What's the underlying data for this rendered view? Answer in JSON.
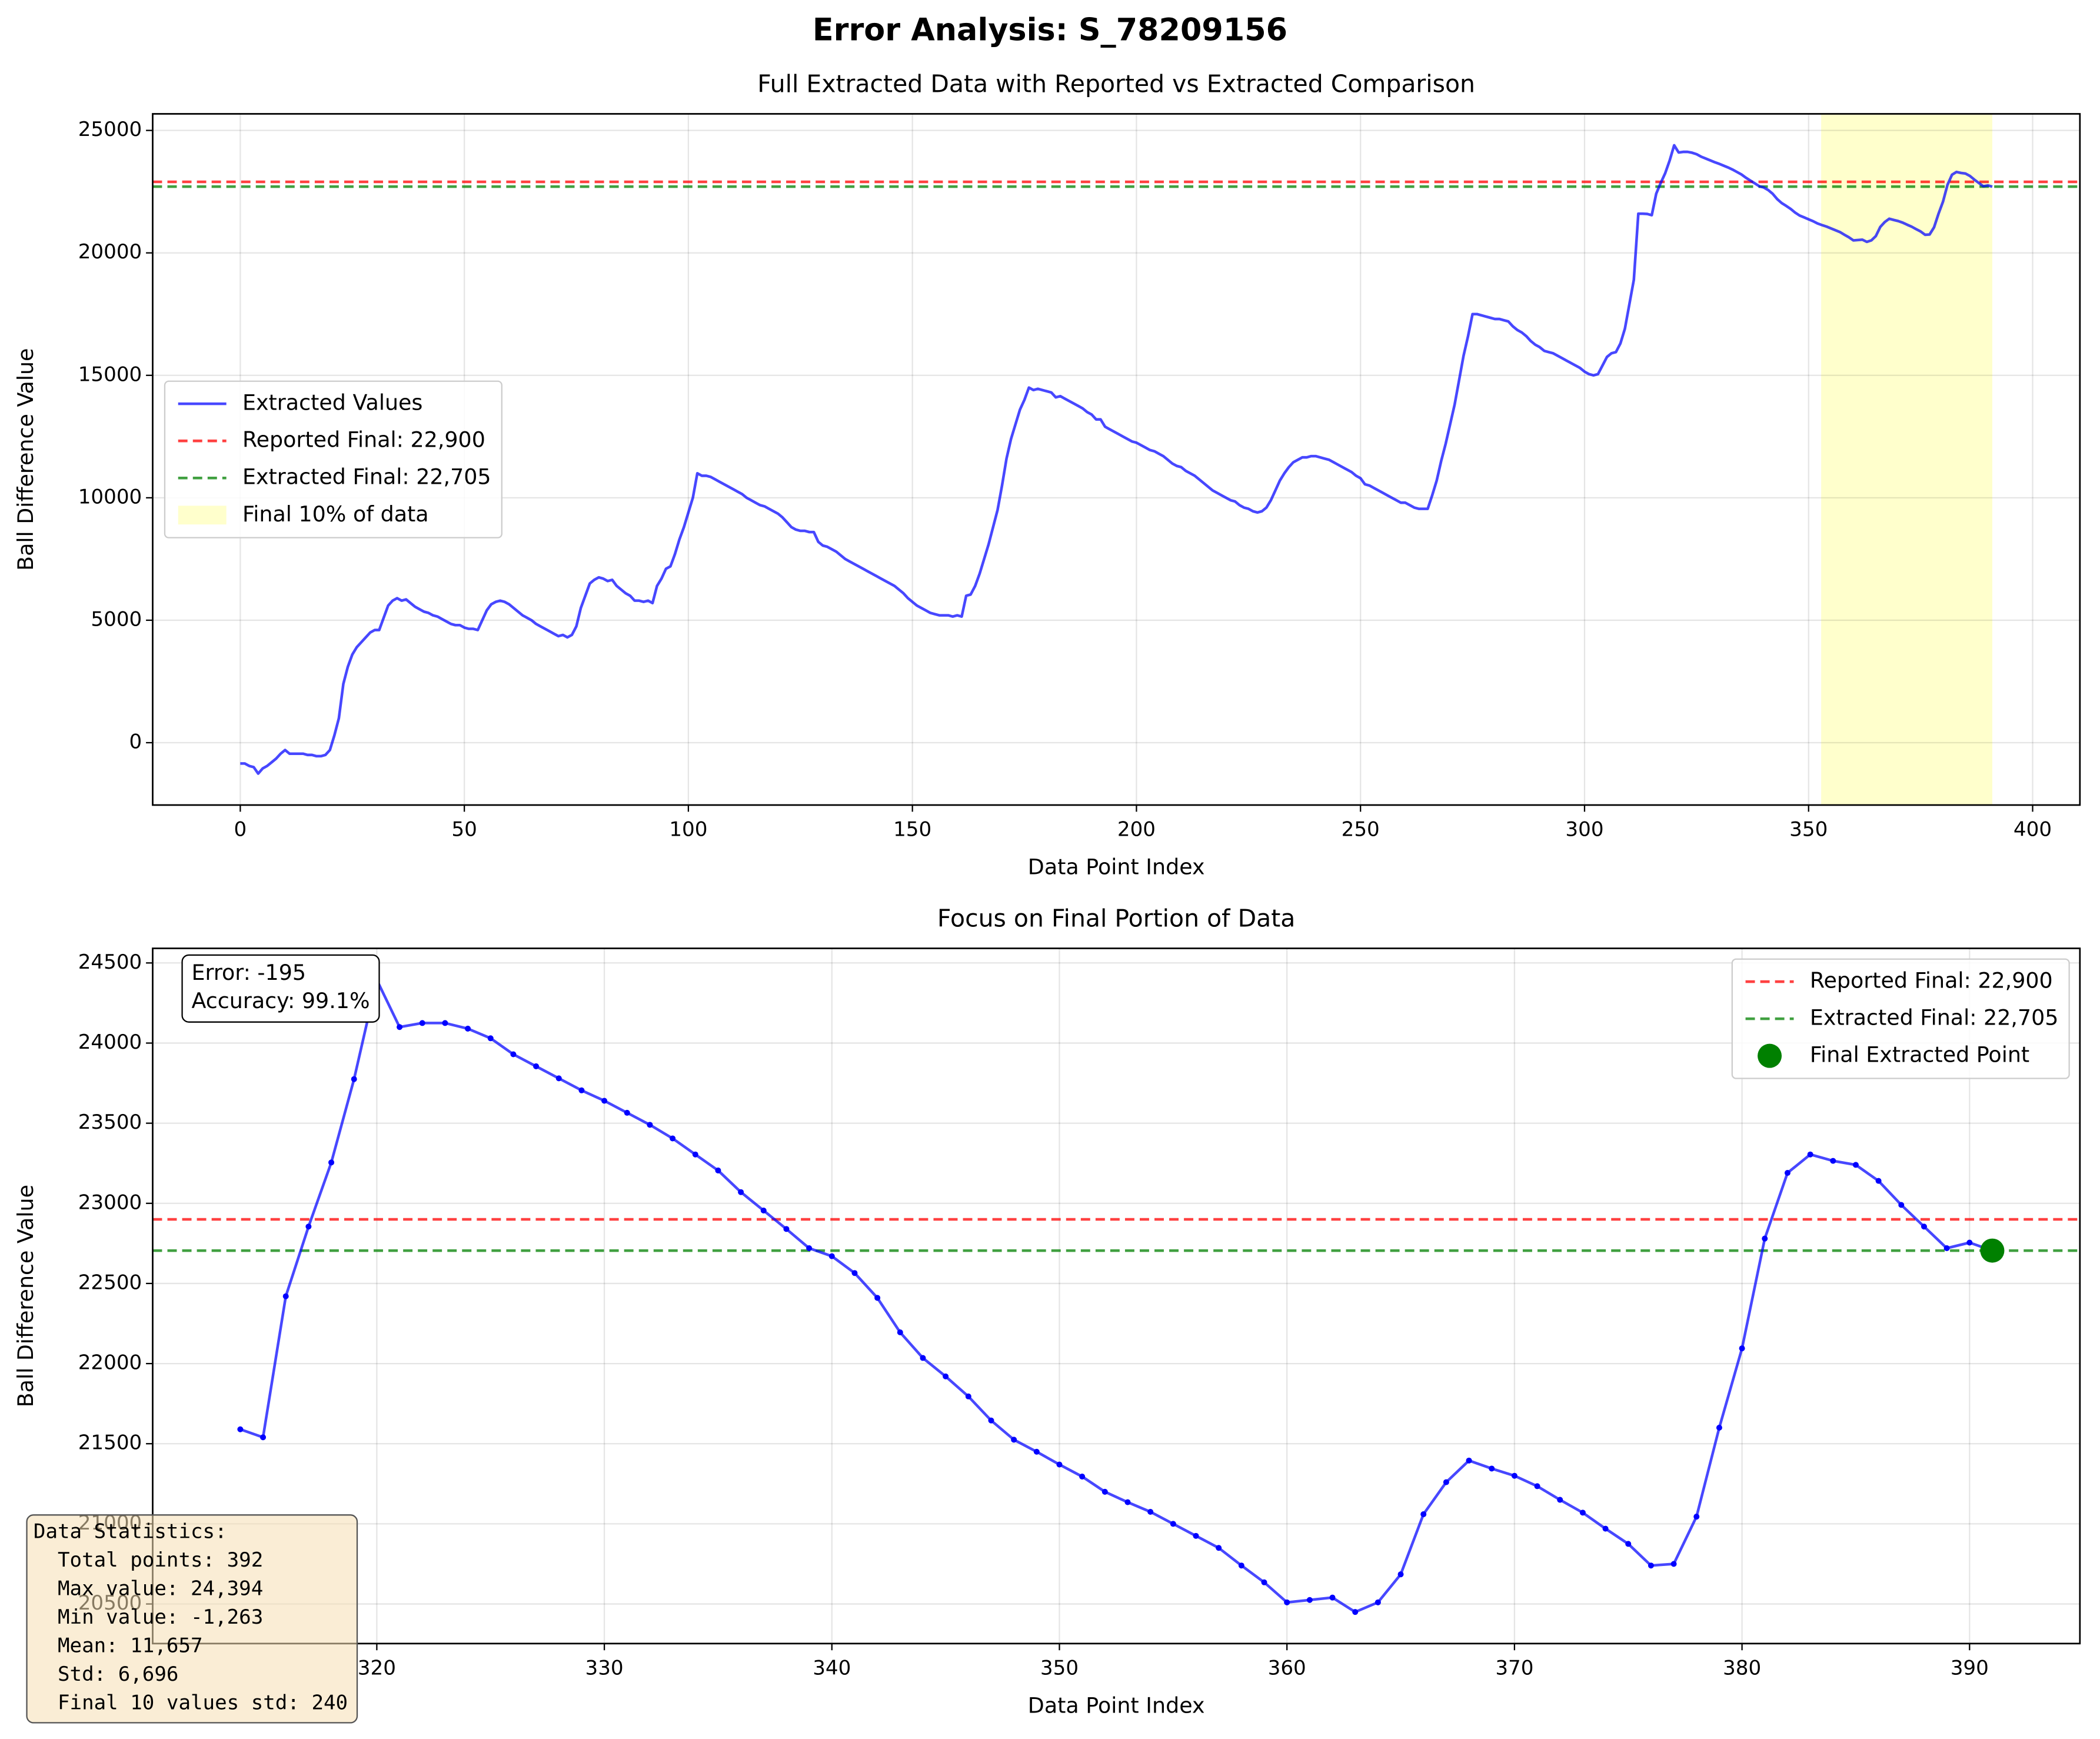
{
  "title": "Error Analysis: S_78209156",
  "stats_box": {
    "lines": [
      "Data Statistics:",
      "  Total points: 392",
      "  Max value: 24,394",
      "  Min value: -1,263",
      "  Mean: 11,657",
      "  Std: 6,696",
      "  Final 10 values std: 240"
    ]
  },
  "chart_data": [
    {
      "type": "line",
      "title": "Full Extracted Data with Reported vs Extracted Comparison",
      "xlabel": "Data Point Index",
      "ylabel": "Ball Difference Value",
      "xlim": [
        -19.55,
        410.55
      ],
      "ylim": [
        -2546,
        25677
      ],
      "xticks": [
        0,
        50,
        100,
        150,
        200,
        250,
        300,
        350,
        400
      ],
      "yticks": [
        0,
        5000,
        10000,
        15000,
        20000,
        25000
      ],
      "grid": true,
      "legend": "center left",
      "x": [
        0,
        1,
        2,
        3,
        4,
        5,
        6,
        7,
        8,
        9,
        10,
        11,
        12,
        13,
        14,
        15,
        16,
        17,
        18,
        19,
        20,
        21,
        22,
        23,
        24,
        25,
        26,
        27,
        28,
        29,
        30,
        31,
        32,
        33,
        34,
        35,
        36,
        37,
        38,
        39,
        40,
        41,
        42,
        43,
        44,
        45,
        46,
        47,
        48,
        49,
        50,
        51,
        52,
        53,
        54,
        55,
        56,
        57,
        58,
        59,
        60,
        61,
        62,
        63,
        64,
        65,
        66,
        67,
        68,
        69,
        70,
        71,
        72,
        73,
        74,
        75,
        76,
        77,
        78,
        79,
        80,
        81,
        82,
        83,
        84,
        85,
        86,
        87,
        88,
        89,
        90,
        91,
        92,
        93,
        94,
        95,
        96,
        97,
        98,
        99,
        100,
        101,
        102,
        103,
        104,
        105,
        106,
        107,
        108,
        109,
        110,
        111,
        112,
        113,
        114,
        115,
        116,
        117,
        118,
        119,
        120,
        121,
        122,
        123,
        124,
        125,
        126,
        127,
        128,
        129,
        130,
        131,
        132,
        133,
        134,
        135,
        136,
        137,
        138,
        139,
        140,
        141,
        142,
        143,
        144,
        145,
        146,
        147,
        148,
        149,
        150,
        151,
        152,
        153,
        154,
        155,
        156,
        157,
        158,
        159,
        160,
        161,
        162,
        163,
        164,
        165,
        166,
        167,
        168,
        169,
        170,
        171,
        172,
        173,
        174,
        175,
        176,
        177,
        178,
        179,
        180,
        181,
        182,
        183,
        184,
        185,
        186,
        187,
        188,
        189,
        190,
        191,
        192,
        193,
        194,
        195,
        196,
        197,
        198,
        199,
        200,
        201,
        202,
        203,
        204,
        205,
        206,
        207,
        208,
        209,
        210,
        211,
        212,
        213,
        214,
        215,
        216,
        217,
        218,
        219,
        220,
        221,
        222,
        223,
        224,
        225,
        226,
        227,
        228,
        229,
        230,
        231,
        232,
        233,
        234,
        235,
        236,
        237,
        238,
        239,
        240,
        241,
        242,
        243,
        244,
        245,
        246,
        247,
        248,
        249,
        250,
        251,
        252,
        253,
        254,
        255,
        256,
        257,
        258,
        259,
        260,
        261,
        262,
        263,
        264,
        265,
        266,
        267,
        268,
        269,
        270,
        271,
        272,
        273,
        274,
        275,
        276,
        277,
        278,
        279,
        280,
        281,
        282,
        283,
        284,
        285,
        286,
        287,
        288,
        289,
        290,
        291,
        292,
        293,
        294,
        295,
        296,
        297,
        298,
        299,
        300,
        301,
        302,
        303,
        304,
        305,
        306,
        307,
        308,
        309,
        310,
        311,
        312,
        313,
        314,
        315,
        316,
        317,
        318,
        319,
        320,
        321,
        322,
        323,
        324,
        325,
        326,
        327,
        328,
        329,
        330,
        331,
        332,
        333,
        334,
        335,
        336,
        337,
        338,
        339,
        340,
        341,
        342,
        343,
        344,
        345,
        346,
        347,
        348,
        349,
        350,
        351,
        352,
        353,
        354,
        355,
        356,
        357,
        358,
        359,
        360,
        361,
        362,
        363,
        364,
        365,
        366,
        367,
        368,
        369,
        370,
        371,
        372,
        373,
        374,
        375,
        376,
        377,
        378,
        379,
        380,
        381,
        382,
        383,
        384,
        385,
        386,
        387,
        388,
        389,
        390,
        391
      ],
      "series": [
        {
          "name": "Extracted Values",
          "color": "#0000ff",
          "values": [
            -850,
            -850,
            -950,
            -1000,
            -1263,
            -1050,
            -950,
            -800,
            -650,
            -450,
            -300,
            -450,
            -450,
            -450,
            -450,
            -500,
            -500,
            -550,
            -550,
            -500,
            -300,
            300,
            1000,
            2400,
            3100,
            3600,
            3900,
            4100,
            4300,
            4500,
            4600,
            4600,
            5100,
            5600,
            5800,
            5900,
            5800,
            5850,
            5700,
            5550,
            5450,
            5350,
            5300,
            5200,
            5150,
            5050,
            4950,
            4850,
            4800,
            4800,
            4700,
            4650,
            4650,
            4600,
            5000,
            5400,
            5650,
            5750,
            5800,
            5750,
            5650,
            5500,
            5350,
            5200,
            5100,
            5000,
            4850,
            4750,
            4650,
            4550,
            4450,
            4350,
            4400,
            4300,
            4400,
            4750,
            5500,
            6000,
            6500,
            6650,
            6750,
            6700,
            6600,
            6650,
            6400,
            6250,
            6100,
            6000,
            5800,
            5800,
            5750,
            5800,
            5700,
            6400,
            6700,
            7100,
            7200,
            7700,
            8300,
            8800,
            9400,
            10000,
            11000,
            10900,
            10900,
            10850,
            10750,
            10650,
            10550,
            10450,
            10350,
            10250,
            10150,
            10000,
            9900,
            9800,
            9700,
            9650,
            9550,
            9450,
            9350,
            9200,
            9000,
            8800,
            8700,
            8650,
            8650,
            8600,
            8600,
            8200,
            8050,
            8000,
            7900,
            7800,
            7650,
            7500,
            7400,
            7300,
            7200,
            7100,
            7000,
            6900,
            6800,
            6700,
            6600,
            6500,
            6400,
            6250,
            6100,
            5900,
            5750,
            5600,
            5500,
            5400,
            5300,
            5250,
            5200,
            5200,
            5200,
            5150,
            5200,
            5150,
            6000,
            6050,
            6400,
            6900,
            7500,
            8100,
            8800,
            9500,
            10500,
            11600,
            12400,
            13000,
            13600,
            14000,
            14500,
            14400,
            14450,
            14400,
            14350,
            14300,
            14100,
            14150,
            14050,
            13950,
            13850,
            13750,
            13650,
            13500,
            13400,
            13200,
            13200,
            12900,
            12800,
            12700,
            12600,
            12500,
            12400,
            12300,
            12250,
            12150,
            12050,
            11950,
            11900,
            11800,
            11700,
            11550,
            11400,
            11300,
            11250,
            11100,
            11000,
            10900,
            10750,
            10600,
            10450,
            10300,
            10200,
            10100,
            10000,
            9900,
            9850,
            9700,
            9600,
            9550,
            9450,
            9400,
            9450,
            9600,
            9900,
            10300,
            10700,
            11000,
            11250,
            11450,
            11550,
            11650,
            11650,
            11700,
            11700,
            11650,
            11600,
            11550,
            11450,
            11350,
            11250,
            11150,
            11050,
            10900,
            10800,
            10550,
            10500,
            10400,
            10300,
            10200,
            10100,
            10000,
            9900,
            9800,
            9800,
            9700,
            9600,
            9550,
            9550,
            9550,
            10100,
            10700,
            11500,
            12200,
            13000,
            13800,
            14800,
            15800,
            16600,
            17500,
            17500,
            17450,
            17400,
            17350,
            17300,
            17300,
            17250,
            17200,
            17000,
            16850,
            16750,
            16600,
            16400,
            16250,
            16150,
            16000,
            15950,
            15900,
            15800,
            15700,
            15600,
            15500,
            15400,
            15300,
            15150,
            15050,
            15000,
            15050,
            15400,
            15750,
            15900,
            15950,
            16300,
            16900,
            17900,
            18900,
            21600,
            21600,
            21590,
            21540,
            22420,
            22855,
            23255,
            23775,
            24394,
            24100,
            24125,
            24125,
            24090,
            24030,
            23930,
            23855,
            23780,
            23705,
            23640,
            23565,
            23490,
            23405,
            23305,
            23205,
            23070,
            22955,
            22840,
            22720,
            22670,
            22565,
            22410,
            22195,
            22035,
            21920,
            21795,
            21645,
            21525,
            21450,
            21370,
            21295,
            21200,
            21135,
            21075,
            21000,
            20925,
            20850,
            20740,
            20635,
            20510,
            20525,
            20540,
            20450,
            20510,
            20685,
            21060,
            21260,
            21395,
            21345,
            21300,
            21235,
            21150,
            21070,
            20970,
            20875,
            20740,
            20750,
            21045,
            21600,
            22095,
            22780,
            23190,
            23305,
            23265,
            23240,
            23140,
            22990,
            22855,
            22720,
            22755,
            22705
          ]
        }
      ],
      "hlines": [
        {
          "name": "Reported Final: 22,900",
          "value": 22900,
          "color": "#ff0000"
        },
        {
          "name": "Extracted Final: 22,705",
          "value": 22705,
          "color": "#008000"
        }
      ],
      "span": {
        "name": "Final 10% of data",
        "range": [
          352.8,
          391
        ],
        "color": "#ffff00"
      }
    },
    {
      "type": "line",
      "title": "Focus on Final Portion of Data",
      "xlabel": "Data Point Index",
      "ylabel": "Ball Difference Value",
      "xlim": [
        310.15,
        394.85
      ],
      "ylim": [
        20253,
        24591
      ],
      "xticks": [
        320,
        330,
        340,
        350,
        360,
        370,
        380,
        390
      ],
      "yticks": [
        20500,
        21000,
        21500,
        22000,
        22500,
        23000,
        23500,
        24000,
        24500
      ],
      "grid": true,
      "legend": "upper right",
      "markers": true,
      "x": [
        314,
        315,
        316,
        317,
        318,
        319,
        320,
        321,
        322,
        323,
        324,
        325,
        326,
        327,
        328,
        329,
        330,
        331,
        332,
        333,
        334,
        335,
        336,
        337,
        338,
        339,
        340,
        341,
        342,
        343,
        344,
        345,
        346,
        347,
        348,
        349,
        350,
        351,
        352,
        353,
        354,
        355,
        356,
        357,
        358,
        359,
        360,
        361,
        362,
        363,
        364,
        365,
        366,
        367,
        368,
        369,
        370,
        371,
        372,
        373,
        374,
        375,
        376,
        377,
        378,
        379,
        380,
        381,
        382,
        383,
        384,
        385,
        386,
        387,
        388,
        389,
        390,
        391
      ],
      "series": [
        {
          "color": "#0000ff",
          "values": [
            21590,
            21540,
            22420,
            22855,
            23255,
            23775,
            24394,
            24100,
            24125,
            24125,
            24090,
            24030,
            23930,
            23855,
            23780,
            23705,
            23640,
            23565,
            23490,
            23405,
            23305,
            23205,
            23070,
            22955,
            22840,
            22720,
            22670,
            22565,
            22410,
            22195,
            22035,
            21920,
            21795,
            21645,
            21525,
            21450,
            21370,
            21295,
            21200,
            21135,
            21075,
            21000,
            20925,
            20850,
            20740,
            20635,
            20510,
            20525,
            20540,
            20450,
            20510,
            20685,
            21060,
            21260,
            21395,
            21345,
            21300,
            21235,
            21150,
            21070,
            20970,
            20875,
            20740,
            20750,
            21045,
            21600,
            22095,
            22780,
            23190,
            23305,
            23265,
            23240,
            23140,
            22990,
            22855,
            22720,
            22755,
            22705
          ]
        }
      ],
      "hlines": [
        {
          "name": "Reported Final: 22,900",
          "value": 22900,
          "color": "#ff0000"
        },
        {
          "name": "Extracted Final: 22,705",
          "value": 22705,
          "color": "#008000"
        }
      ],
      "points": [
        {
          "name": "Final Extracted Point",
          "x": 391,
          "y": 22705,
          "color": "#008000"
        }
      ],
      "annotations": [
        {
          "lines": [
            "Error: -195",
            "Accuracy: 99.1%"
          ]
        }
      ]
    }
  ]
}
